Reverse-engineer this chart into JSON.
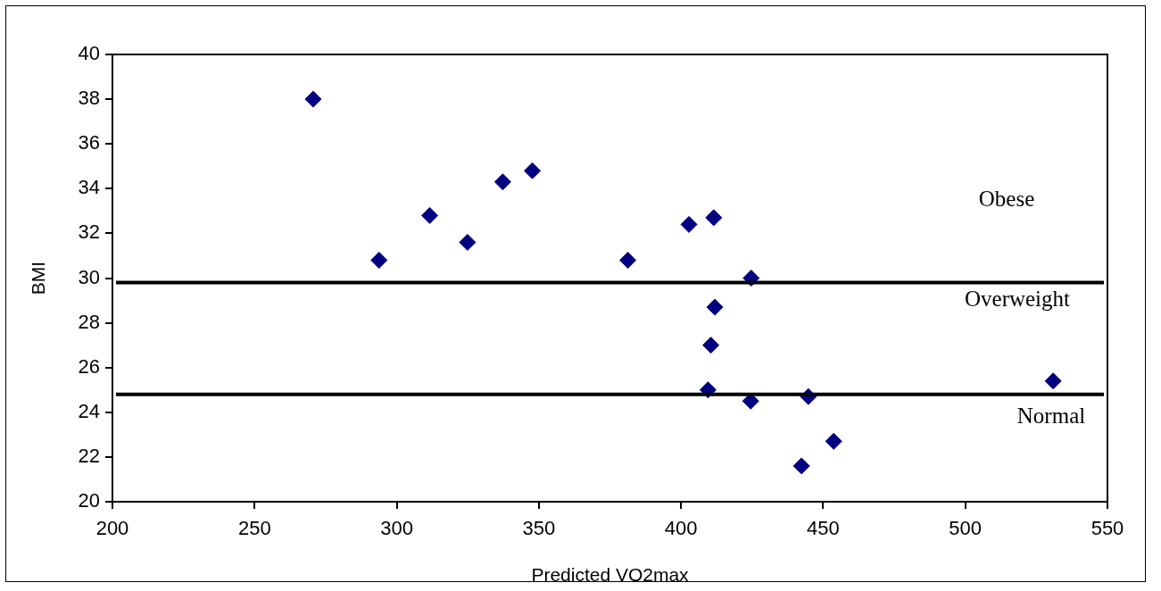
{
  "chart_data": {
    "type": "scatter",
    "xlabel": "Predicted VO2max",
    "ylabel": "BMI",
    "xlim": [
      200,
      550
    ],
    "xticks": [
      200,
      250,
      300,
      350,
      400,
      450,
      500,
      550
    ],
    "ylim": [
      20,
      40
    ],
    "yticks": [
      20,
      22,
      24,
      26,
      28,
      30,
      32,
      34,
      36,
      38,
      40
    ],
    "grid": false,
    "legend": false,
    "marker": "diamond",
    "series": [
      {
        "color": "#000080",
        "x": [
          270.6,
          293.8,
          311.6,
          324.9,
          337.3,
          347.7,
          381.3,
          402.8,
          411.5,
          424.7,
          411.9,
          410.5,
          409.5,
          424.5,
          444.8,
          453.7,
          442.4,
          530.9
        ],
        "values": [
          38.0,
          30.8,
          32.8,
          31.6,
          34.3,
          34.8,
          30.8,
          32.4,
          32.7,
          30.0,
          28.7,
          27.0,
          25.0,
          24.5,
          24.7,
          22.7,
          21.6,
          25.4
        ]
      }
    ],
    "ref_lines": [
      {
        "axis": "y",
        "value": 29.8,
        "color": "#000000"
      },
      {
        "axis": "y",
        "value": 24.8,
        "color": "#000000"
      }
    ],
    "annotations": [
      "Obese",
      "Overweight",
      "Normal"
    ]
  }
}
